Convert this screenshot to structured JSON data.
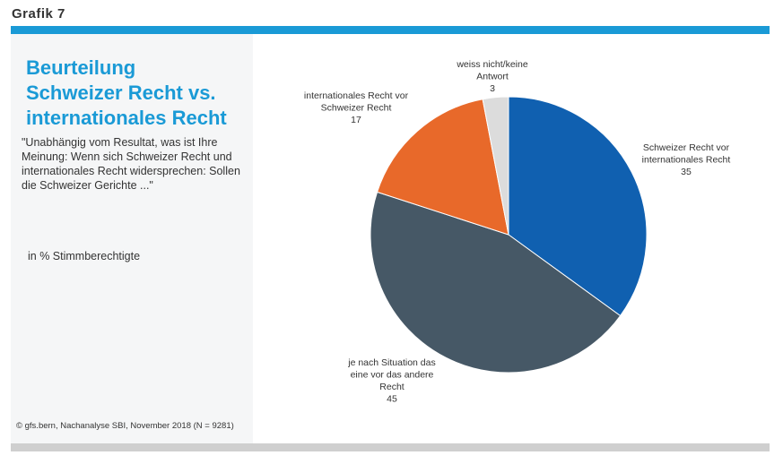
{
  "header": {
    "grafik_label": "Grafik 7"
  },
  "colors": {
    "accent": "#1a9ad6",
    "slice_schweizer": "#1060b0",
    "slice_situation": "#465866",
    "slice_international": "#e8692a",
    "slice_weissnicht": "#dcdcdc"
  },
  "panel": {
    "title_line1": "Beurteilung",
    "title_line2": "Schweizer Recht vs.",
    "title_line3": "internationales Recht",
    "question": "\"Unabhängig vom Resultat, was ist Ihre Meinung: Wenn sich Schweizer Recht und internationales Recht widersprechen: Sollen die Schweizer Gerichte ...\"",
    "unit": "in % Stimmberechtigte",
    "source": "© gfs.bern, Nachanalyse SBI, November 2018 (N = 9281)"
  },
  "chart_data": {
    "type": "pie",
    "title": "Beurteilung Schweizer Recht vs. internationales Recht",
    "unit": "in % Stimmberechtigte",
    "slices": [
      {
        "label_lines": [
          "Schweizer Recht vor",
          "internationales Recht"
        ],
        "value": 35,
        "color": "#1060b0"
      },
      {
        "label_lines": [
          "je nach Situation das",
          "eine vor das andere",
          "Recht"
        ],
        "value": 45,
        "color": "#465866"
      },
      {
        "label_lines": [
          "internationales Recht vor",
          "Schweizer Recht"
        ],
        "value": 17,
        "color": "#e8692a"
      },
      {
        "label_lines": [
          "weiss nicht/keine",
          "Antwort"
        ],
        "value": 3,
        "color": "#dcdcdc"
      }
    ]
  }
}
